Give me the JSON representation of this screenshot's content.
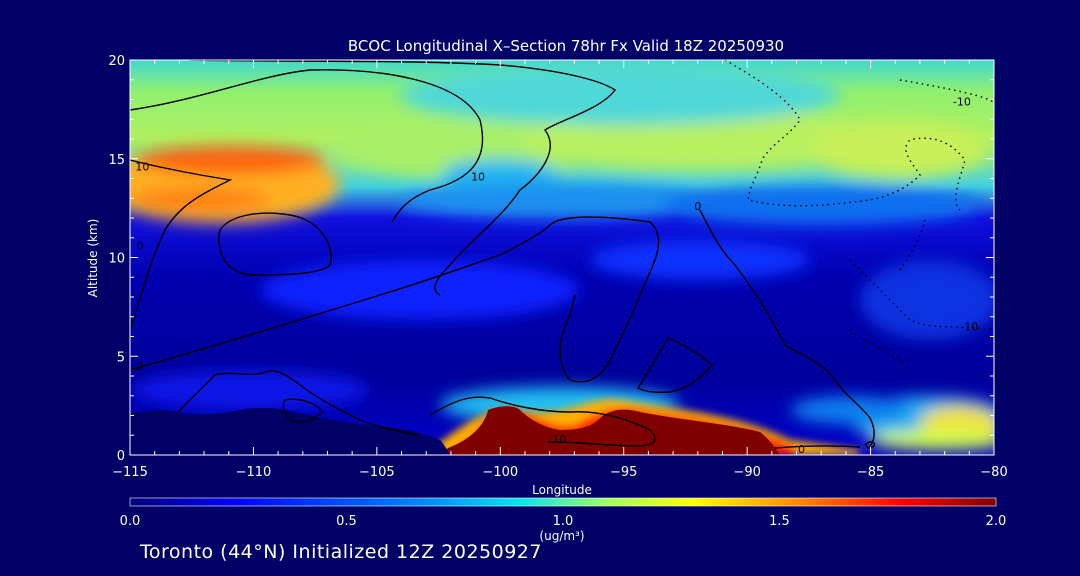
{
  "chart_data": {
    "type": "heatmap",
    "title": "BCOC Longitudinal X–Section 78hr  Fx Valid 18Z 20250930",
    "xlabel": "Longitude",
    "ylabel": "Altitude (km)",
    "xlim": [
      -115,
      -80
    ],
    "ylim": [
      0,
      20
    ],
    "xticks": [
      "−115",
      "−110",
      "−105",
      "−100",
      "−95",
      "−90",
      "−85",
      "−80"
    ],
    "xtick_values": [
      -115,
      -110,
      -105,
      -100,
      -95,
      -90,
      -85,
      -80
    ],
    "yticks": [
      "0",
      "5",
      "10",
      "15",
      "20"
    ],
    "ytick_values": [
      0,
      5,
      10,
      15,
      20
    ],
    "colorbar": {
      "ticks": [
        "0.0",
        "0.5",
        "1.0",
        "1.5",
        "2.0"
      ],
      "tick_values": [
        0.0,
        0.5,
        1.0,
        1.5,
        2.0
      ],
      "label_top": "1.0",
      "unit": "(ug/m³)",
      "range": [
        0,
        2
      ]
    },
    "contour_labels": [
      {
        "text": "10",
        "lon": -114.5,
        "alt": 14.6
      },
      {
        "text": "10",
        "lon": -100.9,
        "alt": 14.1
      },
      {
        "text": "0",
        "lon": -92.0,
        "alt": 12.6
      },
      {
        "text": "0",
        "lon": -114.6,
        "alt": 10.6
      },
      {
        "text": "0",
        "lon": -114.6,
        "alt": 4.5
      },
      {
        "text": "10",
        "lon": -97.6,
        "alt": 0.8
      },
      {
        "text": "0",
        "lon": -87.8,
        "alt": 0.3
      },
      {
        "text": "-10",
        "lon": -81.3,
        "alt": 17.9
      },
      {
        "text": "-10",
        "lon": -81.0,
        "alt": 6.5
      }
    ],
    "field_summary": [
      {
        "region": "upper layer 13-17 km west",
        "lon": [
          -115,
          -106
        ],
        "alt": [
          13,
          16
        ],
        "value": 1.4
      },
      {
        "region": "upper layer 13-19 km central/east",
        "lon": [
          -106,
          -80
        ],
        "alt": [
          13,
          19
        ],
        "value": 0.9
      },
      {
        "region": "mid troposphere",
        "lon": [
          -115,
          -80
        ],
        "alt": [
          2,
          12
        ],
        "value": 0.15
      },
      {
        "region": "surface plume",
        "lon": [
          -100,
          -88
        ],
        "alt": [
          0,
          2
        ],
        "value": 2.0
      },
      {
        "region": "eastern low plume",
        "lon": [
          -84,
          -80
        ],
        "alt": [
          0.5,
          3
        ],
        "value": 1.0
      }
    ]
  },
  "footer": "Toronto (44°N) Initialized 12Z 20250927"
}
